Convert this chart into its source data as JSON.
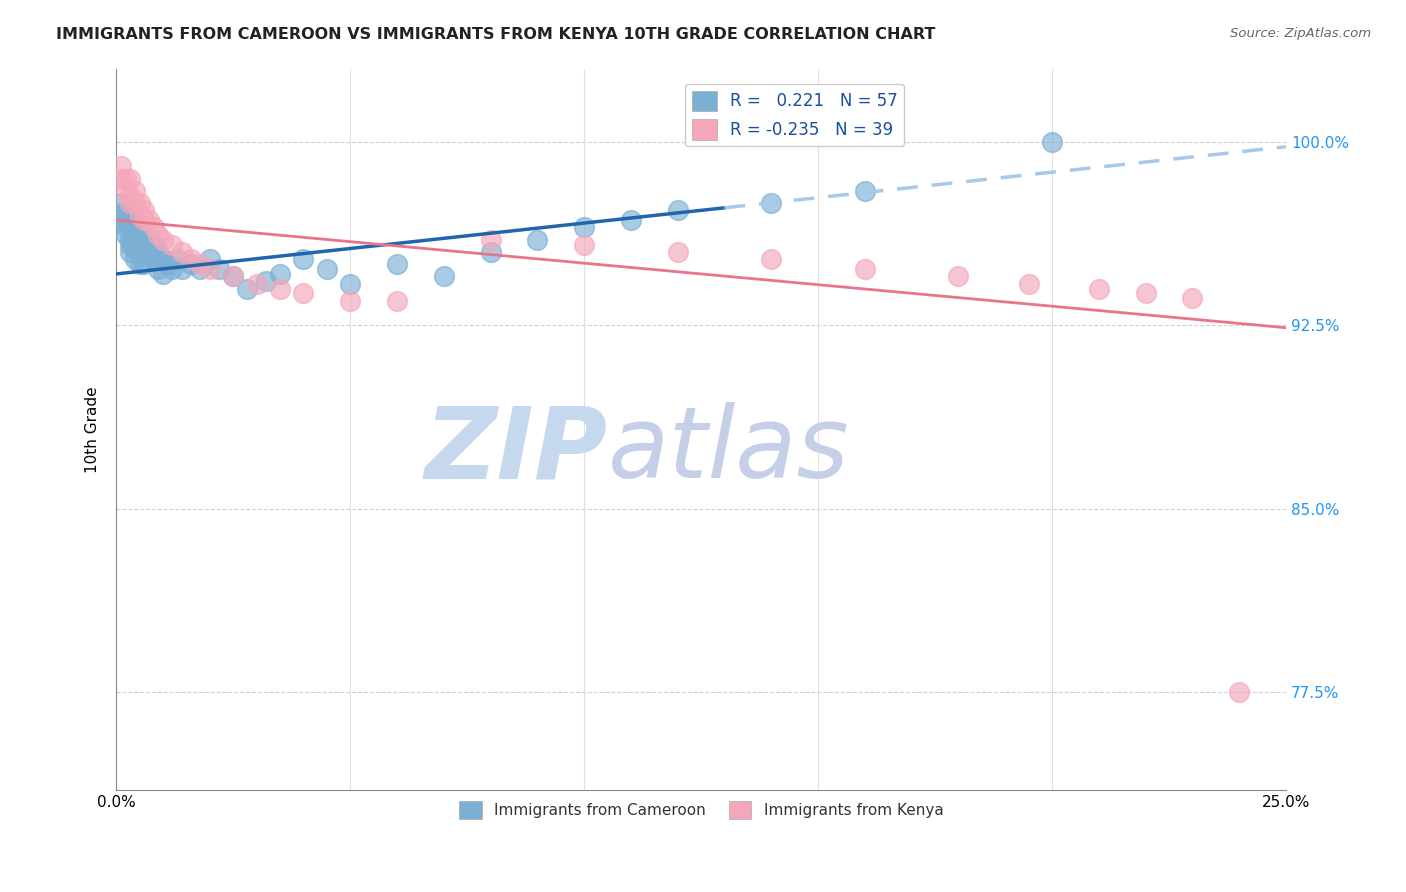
{
  "title": "IMMIGRANTS FROM CAMEROON VS IMMIGRANTS FROM KENYA 10TH GRADE CORRELATION CHART",
  "source": "Source: ZipAtlas.com",
  "ylabel": "10th Grade",
  "y_ticks": [
    0.775,
    0.85,
    0.925,
    1.0
  ],
  "y_tick_labels": [
    "77.5%",
    "85.0%",
    "92.5%",
    "100.0%"
  ],
  "x_range": [
    0.0,
    0.25
  ],
  "y_range": [
    0.735,
    1.03
  ],
  "legend_r_cameroon": "0.221",
  "legend_n_cameroon": "57",
  "legend_r_kenya": "-0.235",
  "legend_n_kenya": "39",
  "color_cameroon": "#7bafd4",
  "color_kenya": "#f4a7b9",
  "trendline_cameroon_color": "#2166ac",
  "trendline_kenya_color": "#e8758a",
  "trendline_dashed_color": "#a8c8e8",
  "watermark_zip_color": "#c5d8ee",
  "watermark_atlas_color": "#c5cfe8",
  "cameroon_x": [
    0.001,
    0.001,
    0.001,
    0.002,
    0.002,
    0.002,
    0.002,
    0.003,
    0.003,
    0.003,
    0.003,
    0.003,
    0.004,
    0.004,
    0.004,
    0.004,
    0.004,
    0.005,
    0.005,
    0.005,
    0.005,
    0.006,
    0.006,
    0.006,
    0.007,
    0.007,
    0.008,
    0.008,
    0.009,
    0.009,
    0.01,
    0.01,
    0.011,
    0.012,
    0.013,
    0.014,
    0.016,
    0.018,
    0.02,
    0.022,
    0.025,
    0.028,
    0.032,
    0.035,
    0.04,
    0.045,
    0.05,
    0.06,
    0.07,
    0.08,
    0.09,
    0.1,
    0.11,
    0.12,
    0.14,
    0.16,
    0.2
  ],
  "cameroon_y": [
    0.975,
    0.97,
    0.968,
    0.972,
    0.968,
    0.965,
    0.962,
    0.97,
    0.965,
    0.96,
    0.958,
    0.955,
    0.968,
    0.963,
    0.96,
    0.956,
    0.952,
    0.965,
    0.96,
    0.955,
    0.95,
    0.958,
    0.955,
    0.95,
    0.96,
    0.955,
    0.958,
    0.952,
    0.955,
    0.948,
    0.952,
    0.946,
    0.95,
    0.948,
    0.952,
    0.948,
    0.95,
    0.948,
    0.952,
    0.948,
    0.945,
    0.94,
    0.943,
    0.946,
    0.952,
    0.948,
    0.942,
    0.95,
    0.945,
    0.955,
    0.96,
    0.965,
    0.968,
    0.972,
    0.975,
    0.98,
    1.0
  ],
  "kenya_x": [
    0.001,
    0.001,
    0.002,
    0.002,
    0.003,
    0.003,
    0.003,
    0.004,
    0.004,
    0.005,
    0.005,
    0.006,
    0.006,
    0.007,
    0.008,
    0.009,
    0.01,
    0.012,
    0.014,
    0.016,
    0.018,
    0.02,
    0.025,
    0.03,
    0.035,
    0.04,
    0.05,
    0.06,
    0.08,
    0.1,
    0.12,
    0.14,
    0.16,
    0.18,
    0.195,
    0.21,
    0.22,
    0.23,
    0.24
  ],
  "kenya_y": [
    0.99,
    0.985,
    0.985,
    0.98,
    0.985,
    0.978,
    0.975,
    0.98,
    0.975,
    0.975,
    0.97,
    0.972,
    0.968,
    0.968,
    0.965,
    0.962,
    0.96,
    0.958,
    0.955,
    0.952,
    0.95,
    0.948,
    0.945,
    0.942,
    0.94,
    0.938,
    0.935,
    0.935,
    0.96,
    0.958,
    0.955,
    0.952,
    0.948,
    0.945,
    0.942,
    0.94,
    0.938,
    0.936,
    0.775
  ],
  "trendline_cam_x0": 0.0,
  "trendline_cam_y0": 0.946,
  "trendline_cam_x1": 0.25,
  "trendline_cam_y1": 0.998,
  "trendline_dashed_x0": 0.13,
  "trendline_dashed_x1": 0.25,
  "trendline_ken_x0": 0.0,
  "trendline_ken_y0": 0.968,
  "trendline_ken_x1": 0.25,
  "trendline_ken_y1": 0.924
}
